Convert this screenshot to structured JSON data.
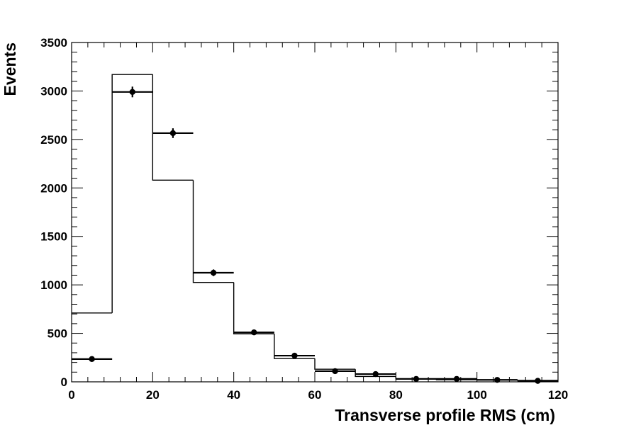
{
  "chart_data": {
    "type": "bar",
    "xlabel": "Transverse profile RMS (cm)",
    "ylabel": "Events",
    "xlim": [
      0,
      120
    ],
    "ylim": [
      0,
      3500
    ],
    "x_ticks": [
      "0",
      "20",
      "40",
      "60",
      "80",
      "100",
      "120"
    ],
    "y_ticks": [
      "0",
      "500",
      "1000",
      "1500",
      "2000",
      "2500",
      "3000",
      "3500"
    ],
    "bin_edges": [
      0,
      10,
      20,
      30,
      40,
      50,
      60,
      70,
      80,
      90,
      100,
      110,
      120
    ],
    "grid": false,
    "legend": "none",
    "series": [
      {
        "style": "histogram-step",
        "values": [
          710,
          3170,
          2080,
          1025,
          495,
          240,
          130,
          55,
          30,
          22,
          20,
          15
        ]
      },
      {
        "style": "points-with-errors",
        "x": [
          5,
          15,
          25,
          35,
          45,
          55,
          65,
          75,
          85,
          95,
          105,
          115
        ],
        "values": [
          235,
          2990,
          2565,
          1125,
          510,
          270,
          110,
          80,
          30,
          30,
          20,
          10
        ],
        "errors": [
          15,
          55,
          50,
          34,
          23,
          16,
          11,
          9,
          6,
          6,
          5,
          3
        ]
      }
    ]
  }
}
